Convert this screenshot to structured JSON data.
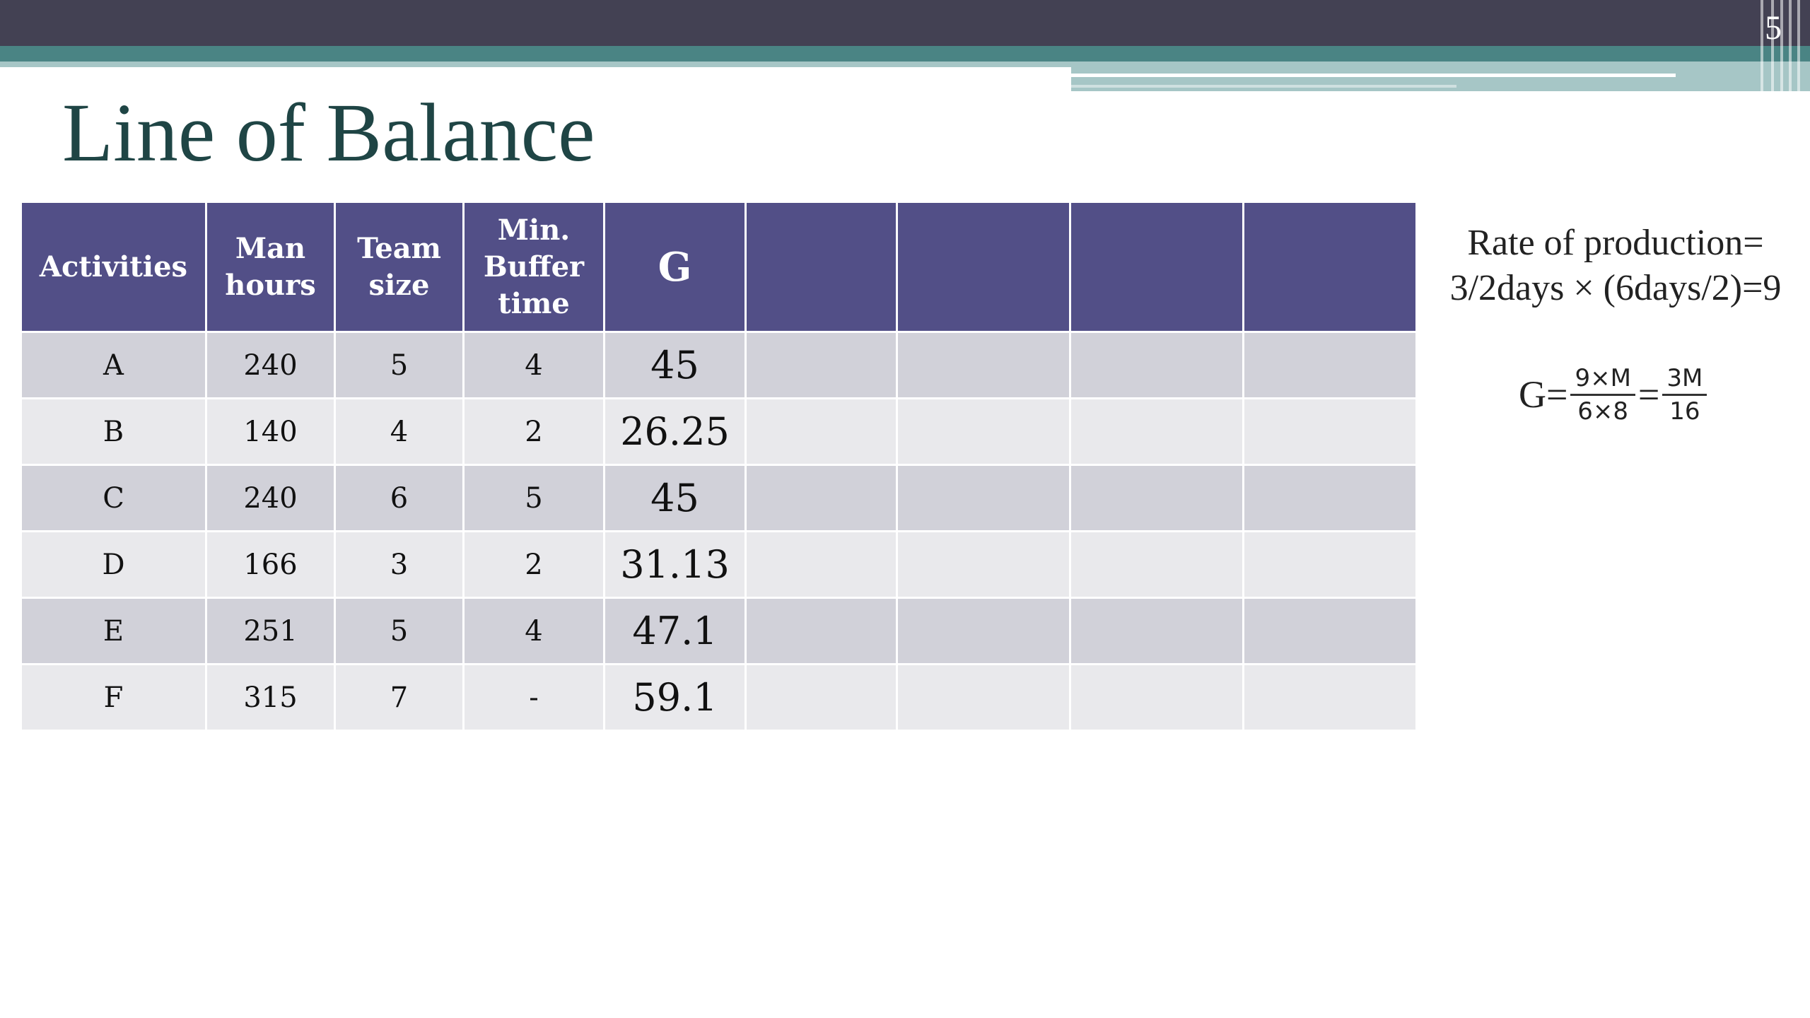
{
  "slide": {
    "number": "5",
    "title": "Line of Balance"
  },
  "table": {
    "headers": [
      "Activities",
      "Man hours",
      "Team size",
      "Min. Buffer time",
      "G",
      "",
      "",
      "",
      ""
    ],
    "rows": [
      {
        "activity": "A",
        "man_hours": "240",
        "team_size": "5",
        "buffer": "4",
        "g": "45"
      },
      {
        "activity": "B",
        "man_hours": "140",
        "team_size": "4",
        "buffer": "2",
        "g": "26.25"
      },
      {
        "activity": "C",
        "man_hours": "240",
        "team_size": "6",
        "buffer": "5",
        "g": "45"
      },
      {
        "activity": "D",
        "man_hours": "166",
        "team_size": "3",
        "buffer": "2",
        "g": "31.13"
      },
      {
        "activity": "E",
        "man_hours": "251",
        "team_size": "5",
        "buffer": "4",
        "g": "47.1"
      },
      {
        "activity": "F",
        "man_hours": "315",
        "team_size": "7",
        "buffer": "-",
        "g": "59.1"
      }
    ]
  },
  "notes": {
    "rate_line1": "Rate of production=",
    "rate_line2": "3/2days × (6days/2)=9",
    "g_label": "G=",
    "frac1_num": "9×M",
    "frac1_den": "6×8",
    "equals": "=",
    "frac2_num": "3M",
    "frac2_den": "16"
  },
  "colors": {
    "header_band": "#434153",
    "accent_teal": "#4a8484",
    "table_header": "#524f87",
    "row_odd": "#d1d1d9",
    "row_even": "#e9e9ec",
    "title": "#1f4545"
  }
}
